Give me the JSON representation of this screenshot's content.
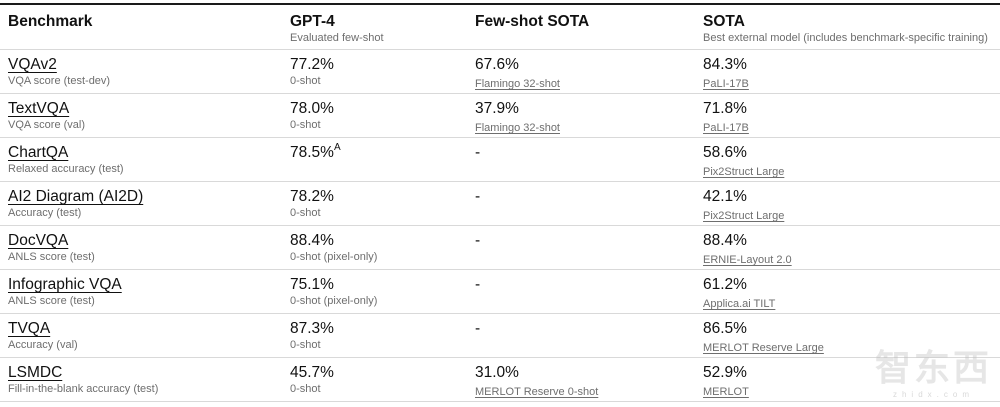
{
  "header": {
    "columns": [
      {
        "label": "Benchmark",
        "subtitle": ""
      },
      {
        "label": "GPT-4",
        "subtitle": "Evaluated few-shot"
      },
      {
        "label": "Few-shot SOTA",
        "subtitle": ""
      },
      {
        "label": "SOTA",
        "subtitle": "Best external model (includes benchmark-specific training)"
      }
    ]
  },
  "rows": [
    {
      "benchmark": "VQAv2",
      "metric": "VQA score (test-dev)",
      "gpt4": {
        "value": "77.2%",
        "note": "0-shot"
      },
      "fewshot": {
        "value": "67.6%",
        "note": "Flamingo 32-shot"
      },
      "sota": {
        "value": "84.3%",
        "note": "PaLI-17B"
      }
    },
    {
      "benchmark": "TextVQA",
      "metric": "VQA score (val)",
      "gpt4": {
        "value": "78.0%",
        "note": "0-shot"
      },
      "fewshot": {
        "value": "37.9%",
        "note": "Flamingo 32-shot"
      },
      "sota": {
        "value": "71.8%",
        "note": "PaLI-17B"
      }
    },
    {
      "benchmark": "ChartQA",
      "metric": "Relaxed accuracy (test)",
      "gpt4": {
        "value": "78.5%",
        "sup": "A"
      },
      "fewshot": {
        "value": "-"
      },
      "sota": {
        "value": "58.6%",
        "note": "Pix2Struct Large"
      }
    },
    {
      "benchmark": "AI2 Diagram (AI2D)",
      "metric": "Accuracy (test)",
      "gpt4": {
        "value": "78.2%",
        "note": "0-shot"
      },
      "fewshot": {
        "value": "-"
      },
      "sota": {
        "value": "42.1%",
        "note": "Pix2Struct Large"
      }
    },
    {
      "benchmark": "DocVQA",
      "metric": "ANLS score (test)",
      "gpt4": {
        "value": "88.4%",
        "note": "0-shot (pixel-only)"
      },
      "fewshot": {
        "value": "-"
      },
      "sota": {
        "value": "88.4%",
        "note": "ERNIE-Layout 2.0"
      }
    },
    {
      "benchmark": "Infographic VQA",
      "metric": "ANLS score (test)",
      "gpt4": {
        "value": "75.1%",
        "note": "0-shot (pixel-only)"
      },
      "fewshot": {
        "value": "-"
      },
      "sota": {
        "value": "61.2%",
        "note": "Applica.ai TILT"
      }
    },
    {
      "benchmark": "TVQA",
      "metric": "Accuracy (val)",
      "gpt4": {
        "value": "87.3%",
        "note": "0-shot"
      },
      "fewshot": {
        "value": "-"
      },
      "sota": {
        "value": "86.5%",
        "note": "MERLOT Reserve Large"
      }
    },
    {
      "benchmark": "LSMDC",
      "metric": "Fill-in-the-blank accuracy (test)",
      "gpt4": {
        "value": "45.7%",
        "note": "0-shot"
      },
      "fewshot": {
        "value": "31.0%",
        "note": "MERLOT Reserve 0-shot"
      },
      "sota": {
        "value": "52.9%",
        "note": "MERLOT"
      }
    }
  ],
  "watermark": {
    "logo": "智东西",
    "domain": "zhidx.com"
  }
}
